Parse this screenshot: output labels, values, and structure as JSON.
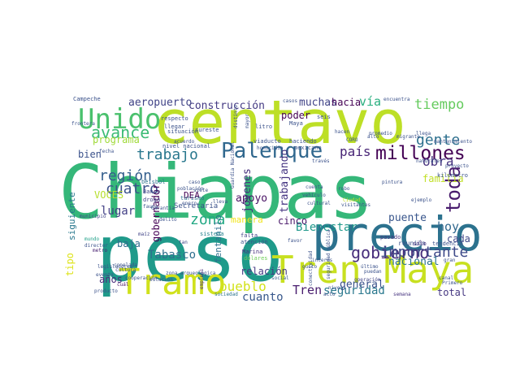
{
  "wordcloud": {
    "words": [
      {
        "text": "Chiapas",
        "color": "#35b779"
      },
      {
        "text": "peso",
        "color": "#1f9a8a"
      },
      {
        "text": "centavo",
        "color": "#bddf26"
      },
      {
        "text": "precio",
        "color": "#2c728e"
      },
      {
        "text": "Tren Maya",
        "color": "#c8e020"
      },
      {
        "text": "Tramo",
        "color": "#d0e11c"
      },
      {
        "text": "Unido",
        "color": "#4ac16d"
      },
      {
        "text": "Palenque",
        "color": "#31688e"
      },
      {
        "text": "millones",
        "color": "#440154"
      },
      {
        "text": "avance",
        "color": "#3bbb75"
      },
      {
        "text": "toda",
        "color": "#481b6d"
      },
      {
        "text": "gobierno",
        "color": "#472d7b"
      },
      {
        "text": "importante",
        "color": "#3e4a89"
      },
      {
        "text": "zona",
        "color": "#22a884"
      },
      {
        "text": "trabajo",
        "color": "#2a788e"
      },
      {
        "text": "cuatro",
        "color": "#3b528b"
      },
      {
        "text": "región",
        "color": "#355f8d"
      },
      {
        "text": "gente",
        "color": "#2d708e"
      },
      {
        "text": "obra",
        "color": "#46327e"
      },
      {
        "text": "tiempo",
        "color": "#65cb5e"
      },
      {
        "text": "país",
        "color": "#482576"
      },
      {
        "text": "construcción",
        "color": "#443a83"
      },
      {
        "text": "aeropuerto",
        "color": "#414487"
      },
      {
        "text": "vía",
        "color": "#29af7f"
      },
      {
        "text": "hoy",
        "color": "#31688e"
      },
      {
        "text": "pueblo",
        "color": "#d2e21b"
      },
      {
        "text": "Tren",
        "color": "#481c6e"
      },
      {
        "text": "seguridad",
        "color": "#2a788e"
      },
      {
        "text": "Tabasco",
        "color": "#2e6f8e"
      },
      {
        "text": "cuanto",
        "color": "#38588c"
      },
      {
        "text": "apoyo",
        "color": "#471063"
      },
      {
        "text": "Bienestar",
        "color": "#1f988b"
      },
      {
        "text": "puente",
        "color": "#39568c"
      },
      {
        "text": "nacional",
        "color": "#2c728e"
      },
      {
        "text": "trabajando",
        "color": "#453581"
      },
      {
        "text": "jóvenes",
        "color": "#472f7d"
      },
      {
        "text": "gobernador",
        "color": "#440154"
      },
      {
        "text": "lugar",
        "color": "#424086"
      },
      {
        "text": "familia",
        "color": "#c0df25"
      },
      {
        "text": "cada",
        "color": "#3f4889"
      },
      {
        "text": "general",
        "color": "#3b528b"
      },
      {
        "text": "muchas",
        "color": "#414487"
      },
      {
        "text": "hacia",
        "color": "#440154"
      },
      {
        "text": "programa",
        "color": "#a0da39"
      },
      {
        "text": "VOCES",
        "color": "#b5de2b"
      },
      {
        "text": "poder",
        "color": "#440154"
      },
      {
        "text": "cinco",
        "color": "#481769"
      },
      {
        "text": "tipo",
        "color": "#dde318"
      },
      {
        "text": "baja",
        "color": "#2f6c8e"
      },
      {
        "text": "bien",
        "color": "#3b528b"
      },
      {
        "text": "años",
        "color": "#472c7a"
      },
      {
        "text": "relación",
        "color": "#443983"
      },
      {
        "text": "total",
        "color": "#453781"
      },
      {
        "text": "manera",
        "color": "#f1e51d"
      },
      {
        "text": "fentanilo",
        "color": "#2d708e"
      },
      {
        "text": "siguiente",
        "color": "#2a788e"
      },
      {
        "text": "DEA",
        "color": "#440154"
      },
      {
        "text": "Secretaría",
        "color": "#3b528b"
      },
      {
        "text": "reunión",
        "color": "#3b528b"
      },
      {
        "text": "sólo",
        "color": "#472f7d"
      },
      {
        "text": "pasado",
        "color": "#46337f"
      },
      {
        "text": "tendencia",
        "color": "#3b528b"
      },
      {
        "text": "Banco",
        "color": "#404588"
      },
      {
        "text": "droga",
        "color": "#404588"
      },
      {
        "text": "turismo",
        "color": "#2c728e"
      },
      {
        "text": "béisbol",
        "color": "#2c728e"
      },
      {
        "text": "sistema",
        "color": "#26828e"
      },
      {
        "text": "falta",
        "color": "#414487"
      },
      {
        "text": "atención",
        "color": "#3b528b"
      },
      {
        "text": "Marina",
        "color": "#46307e"
      },
      {
        "text": "dólares",
        "color": "#6ece58"
      },
      {
        "text": "municipio",
        "color": "#414487"
      },
      {
        "text": "mundo",
        "color": "#1fa088"
      },
      {
        "text": "director",
        "color": "#3b528b"
      },
      {
        "text": "metro",
        "color": "#482071"
      },
      {
        "text": "maíz",
        "color": "#414487"
      },
      {
        "text": "caso",
        "color": "#3b528b"
      },
      {
        "text": "tan",
        "color": "#404588"
      },
      {
        "text": "cultura",
        "color": "#3b528b"
      },
      {
        "text": "producto",
        "color": "#3b528b"
      },
      {
        "text": "cuál",
        "color": "#471365"
      },
      {
        "text": "empleos",
        "color": "#472d7b"
      },
      {
        "text": "sociedad",
        "color": "#2c728e"
      },
      {
        "text": "social",
        "color": "#365d8d"
      },
      {
        "text": "nivel",
        "color": "#3b528b"
      },
      {
        "text": "acto",
        "color": "#3b528b"
      },
      {
        "text": "operación",
        "color": "#414487"
      },
      {
        "text": "semana",
        "color": "#46337f"
      },
      {
        "text": "Campeche",
        "color": "#3b528b"
      },
      {
        "text": "respecto",
        "color": "#3b528b"
      },
      {
        "text": "llegar",
        "color": "#3b528b"
      },
      {
        "text": "situación",
        "color": "#3b528b"
      },
      {
        "text": "sureste",
        "color": "#3b528b"
      },
      {
        "text": "mexicano",
        "color": "#3b528b"
      },
      {
        "text": "haciendo",
        "color": "#3b528b"
      },
      {
        "text": "viaducto",
        "color": "#3b528b"
      },
      {
        "text": "nivel nacional",
        "color": "#3b528b"
      },
      {
        "text": "litro",
        "color": "#3b528b"
      },
      {
        "text": "Maya",
        "color": "#3b528b"
      },
      {
        "text": "seis",
        "color": "#3b528b"
      },
      {
        "text": "casos",
        "color": "#3b528b"
      },
      {
        "text": "encuentra",
        "color": "#3b528b"
      },
      {
        "text": "promedio",
        "color": "#3b528b"
      },
      {
        "text": "migrante",
        "color": "#3b528b"
      },
      {
        "text": "mantenimiento",
        "color": "#3b528b"
      },
      {
        "text": "llega",
        "color": "#3b528b"
      },
      {
        "text": "alto",
        "color": "#3b528b"
      },
      {
        "text": "CORO",
        "color": "#3b528b"
      },
      {
        "text": "través",
        "color": "#3b528b"
      },
      {
        "text": "kilómetro",
        "color": "#3b528b"
      },
      {
        "text": "proyecto",
        "color": "#3b528b"
      },
      {
        "text": "robo",
        "color": "#3b528b"
      },
      {
        "text": "vehículo",
        "color": "#3b528b"
      },
      {
        "text": "Ciudad",
        "color": "#c2df23"
      },
      {
        "text": "visitantes",
        "color": "#3b528b"
      },
      {
        "text": "ejemplo",
        "color": "#3b528b"
      },
      {
        "text": "pintura",
        "color": "#3b528b"
      },
      {
        "text": "último",
        "color": "#3b528b"
      },
      {
        "text": "puedan",
        "color": "#3b528b"
      },
      {
        "text": "seguridad pública",
        "color": "#3b528b"
      },
      {
        "text": "conectividad",
        "color": "#3b528b"
      },
      {
        "text": "gran",
        "color": "#3b528b"
      },
      {
        "text": "Guardia Nacional",
        "color": "#3b528b"
      },
      {
        "text": "homicidio",
        "color": "#3b528b"
      },
      {
        "text": "mayor",
        "color": "#3b528b"
      },
      {
        "text": "distinto",
        "color": "#3b528b"
      },
      {
        "text": "acuerdo",
        "color": "#3b528b"
      },
      {
        "text": "Garantía",
        "color": "#3b528b"
      },
      {
        "text": "población",
        "color": "#3b528b"
      },
      {
        "text": "enero",
        "color": "#3b528b"
      },
      {
        "text": "delito",
        "color": "#3b528b"
      },
      {
        "text": "fauna",
        "color": "#3b528b"
      },
      {
        "text": "zona arqueológica",
        "color": "#3b528b"
      },
      {
        "text": "estación",
        "color": "#3b528b"
      },
      {
        "text": "cooperación",
        "color": "#3b528b"
      },
      {
        "text": "legisladores",
        "color": "#3b528b"
      },
      {
        "text": "conelada",
        "color": "#3b528b"
      },
      {
        "text": "canal",
        "color": "#3b528b"
      },
      {
        "text": "frontera",
        "color": "#3b528b"
      },
      {
        "text": "favor",
        "color": "#3b528b"
      },
      {
        "text": "interés",
        "color": "#3b528b"
      },
      {
        "text": "gusto",
        "color": "#3b528b"
      },
      {
        "text": "siete",
        "color": "#3b528b"
      },
      {
        "text": "lleva",
        "color": "#3b528b"
      },
      {
        "text": "fecha",
        "color": "#3b528b"
      },
      {
        "text": "naturales",
        "color": "#3b528b"
      },
      {
        "text": "evento",
        "color": "#3b528b"
      },
      {
        "text": "cultural",
        "color": "#3b528b"
      },
      {
        "text": "cuenta",
        "color": "#3b528b"
      },
      {
        "text": "hacen",
        "color": "#3b528b"
      },
      {
        "text": "Primero",
        "color": "#3b528b"
      }
    ]
  }
}
